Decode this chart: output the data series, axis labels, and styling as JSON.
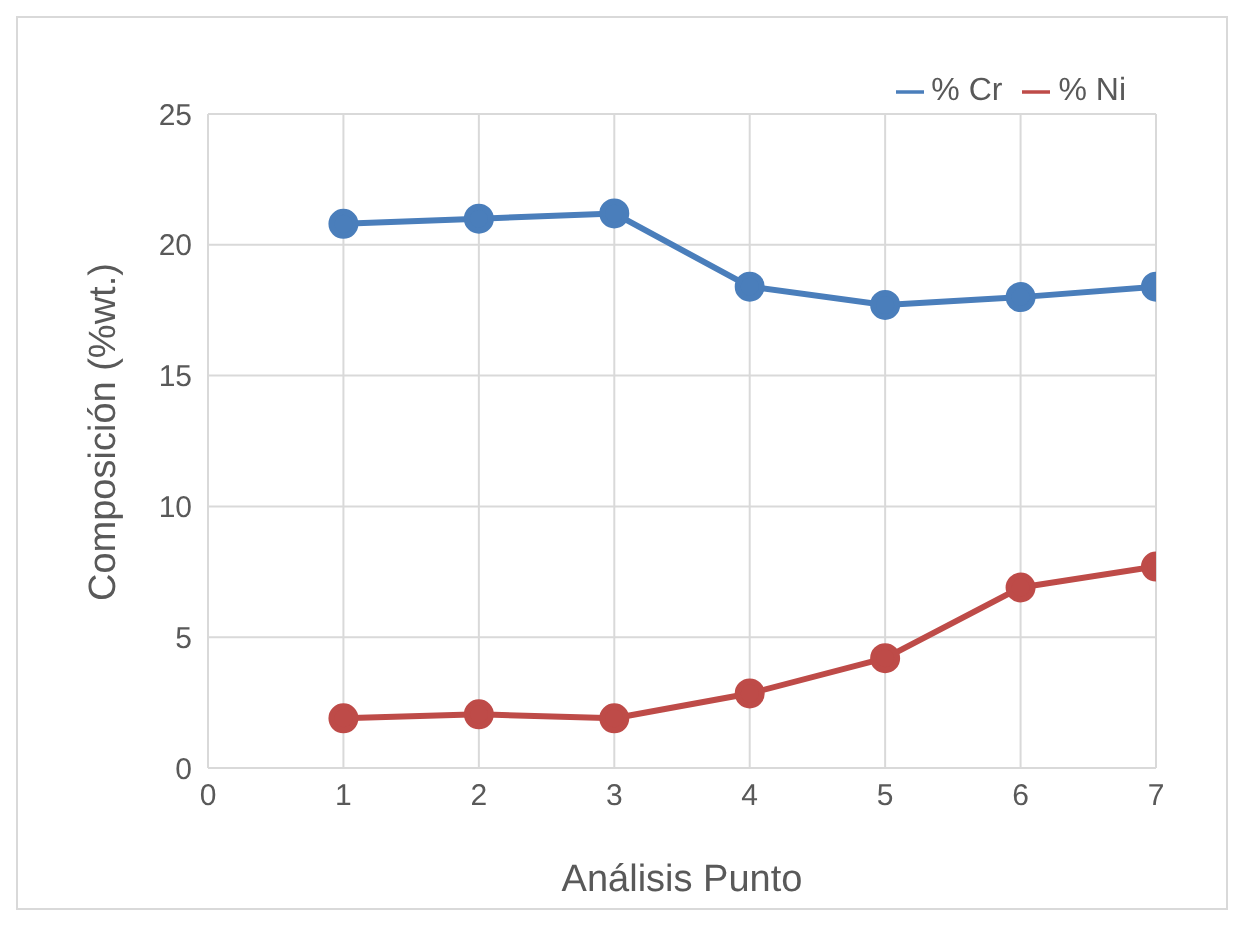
{
  "chart_data": {
    "type": "line",
    "xlabel": "Análisis Punto",
    "ylabel": "Composición (%wt.)",
    "x": [
      1,
      2,
      3,
      4,
      5,
      6,
      7
    ],
    "series": [
      {
        "name": "% Cr",
        "color": "#4a7ebb",
        "values": [
          20.8,
          21.0,
          21.2,
          18.4,
          17.7,
          18.0,
          18.4
        ]
      },
      {
        "name": "% Ni",
        "color": "#be4b48",
        "values": [
          1.9,
          2.05,
          1.9,
          2.85,
          4.2,
          6.9,
          7.7
        ]
      }
    ],
    "xlim": [
      0,
      7
    ],
    "xticks": [
      0,
      1,
      2,
      3,
      4,
      5,
      6,
      7
    ],
    "ylim": [
      0,
      25
    ],
    "yticks": [
      0,
      5,
      10,
      15,
      20,
      25
    ],
    "grid": true,
    "legend": "top right",
    "marker": "circle",
    "line_style": "solid"
  }
}
